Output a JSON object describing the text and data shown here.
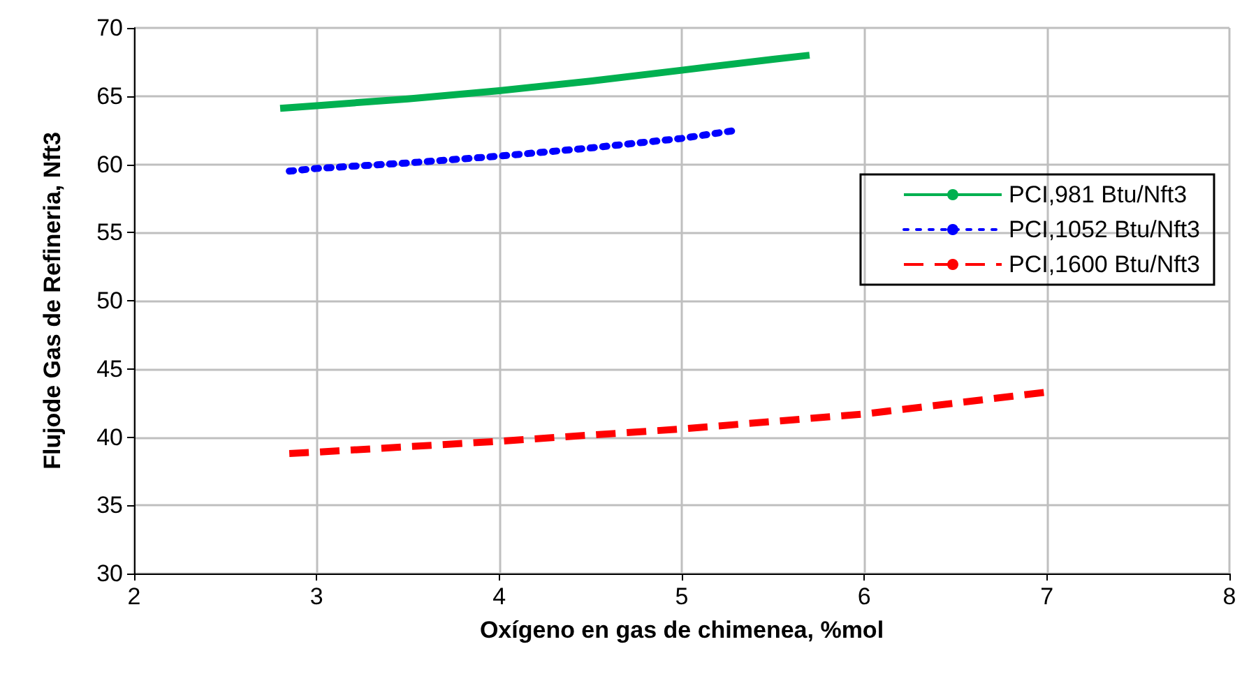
{
  "chart_data": {
    "type": "line",
    "xlabel": "Oxígeno en gas de chimenea, %mol",
    "ylabel": "Flujode Gas de Refineria, Nft3",
    "series": [
      {
        "name": "PCI,981 Btu/Nft3",
        "color": "#00b050",
        "line_style": "solid",
        "x": [
          2.8,
          3,
          3.5,
          4,
          4.5,
          5,
          5.5,
          5.7
        ],
        "values": [
          64.1,
          64.3,
          64.8,
          65.4,
          66.1,
          66.9,
          67.7,
          68.0
        ]
      },
      {
        "name": "PCI,1052 Btu/Nft3",
        "color": "#0000ff",
        "line_style": "dotted",
        "x": [
          2.85,
          3,
          3.5,
          4,
          4.5,
          5,
          5.3
        ],
        "values": [
          59.5,
          59.7,
          60.1,
          60.6,
          61.2,
          61.9,
          62.5
        ]
      },
      {
        "name": "PCI,1600 Btu/Nft3",
        "color": "#ff0000",
        "line_style": "dashed",
        "x": [
          2.85,
          3,
          4,
          5,
          6,
          7
        ],
        "values": [
          38.8,
          38.9,
          39.7,
          40.6,
          41.7,
          43.3
        ]
      }
    ],
    "xlim": [
      2,
      8
    ],
    "xticks": [
      2,
      3,
      4,
      5,
      6,
      7,
      8
    ],
    "ylim": [
      30,
      70
    ],
    "yticks": [
      30,
      35,
      40,
      45,
      50,
      55,
      60,
      65,
      70
    ],
    "grid": true,
    "legend": "right",
    "marker": "none"
  }
}
